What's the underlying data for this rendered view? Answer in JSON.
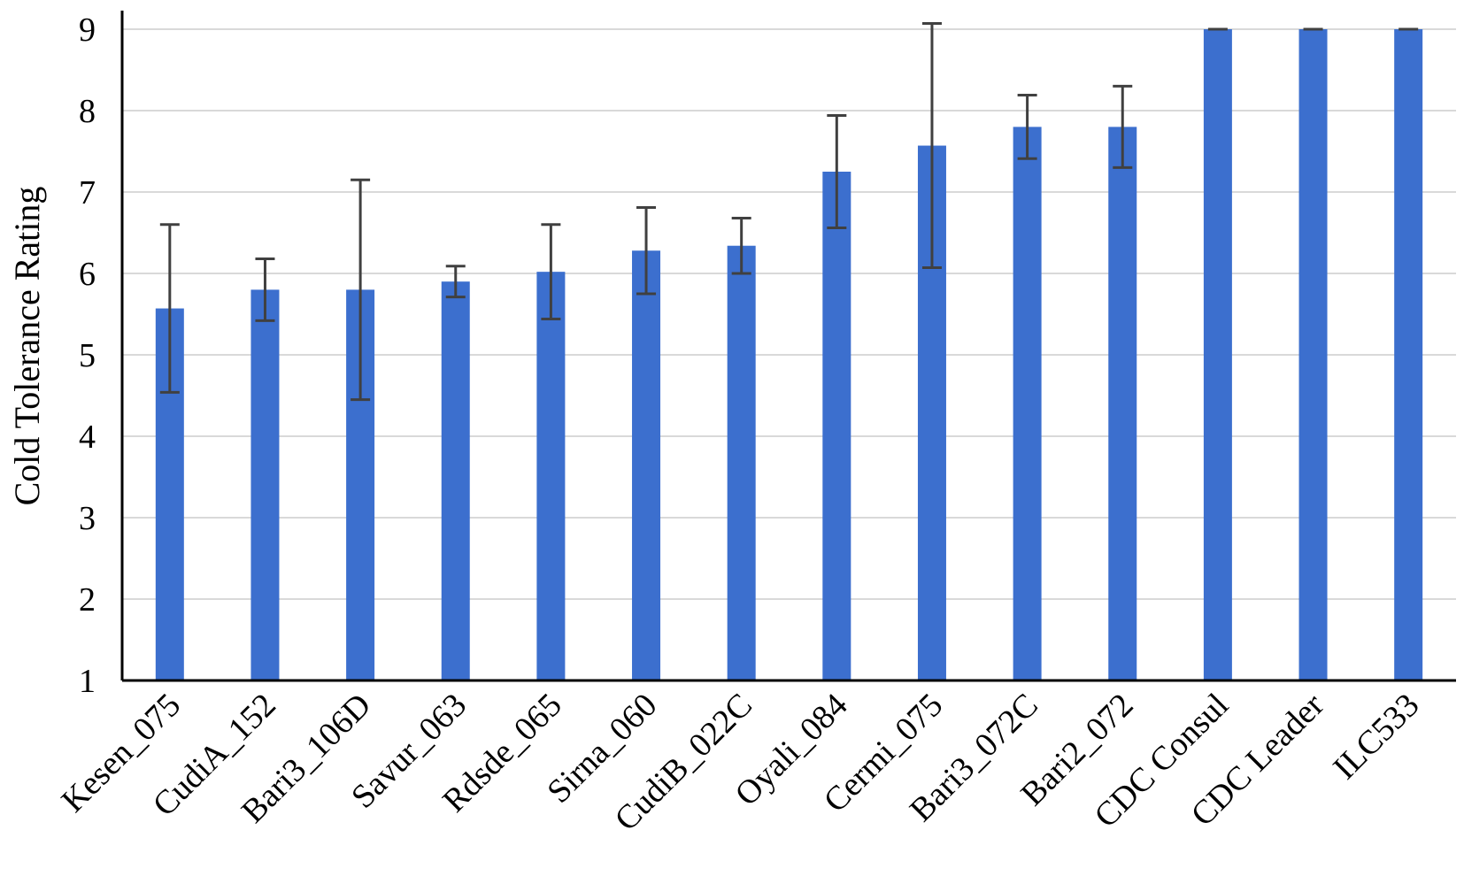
{
  "chart_data": {
    "type": "bar",
    "title": "",
    "xlabel": "",
    "ylabel": "Cold Tolerance Rating",
    "ylim": [
      1,
      9
    ],
    "yticks": [
      1,
      2,
      3,
      4,
      5,
      6,
      7,
      8,
      9
    ],
    "grid": true,
    "legend": "none",
    "bar_color": "#3c6fce",
    "error_color": "#404040",
    "categories": [
      "Kesen_075",
      "CudiA_152",
      "Bari3_106D",
      "Savur_063",
      "Rdsde_065",
      "Sirna_060",
      "CudiB_022C",
      "Oyali_084",
      "Cermi_075",
      "Bari3_072C",
      "Bari2_072",
      "CDC Consul",
      "CDC Leader",
      "ILC533"
    ],
    "values": [
      5.57,
      5.8,
      5.8,
      5.9,
      6.02,
      6.28,
      6.34,
      7.25,
      7.57,
      7.8,
      7.8,
      9,
      9,
      9
    ],
    "errors": [
      1.03,
      0.38,
      1.35,
      0.19,
      0.58,
      0.53,
      0.34,
      0.69,
      1.5,
      0.39,
      0.5,
      0,
      0,
      0
    ]
  }
}
